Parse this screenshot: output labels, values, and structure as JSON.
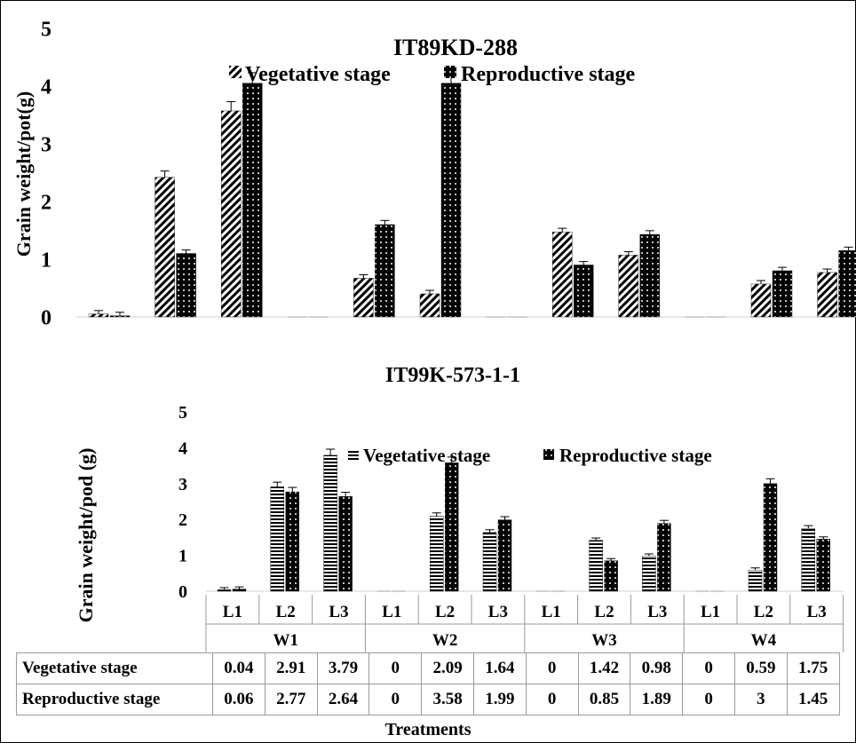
{
  "chart_data": [
    {
      "type": "bar",
      "title": "IT89KD-288",
      "ylabel": "Grain weight/pot(g)",
      "ylim": [
        0,
        5
      ],
      "yticks": [
        0,
        1,
        2,
        3,
        4,
        5
      ],
      "legend_position": "top-center",
      "series": [
        {
          "name": "Vegetative stage",
          "pattern": "diagonal-hatch",
          "values": [
            0.05,
            2.42,
            3.57,
            0,
            0.67,
            0.4,
            0,
            1.47,
            1.07,
            0,
            0.57,
            0.77
          ]
        },
        {
          "name": "Reproductive stage",
          "pattern": "black-dots",
          "values": [
            0.02,
            1.1,
            4.05,
            0,
            1.6,
            4.05,
            0,
            0.9,
            1.43,
            0,
            0.8,
            1.15
          ]
        }
      ]
    },
    {
      "type": "bar",
      "title": "IT99K-573-1-1",
      "ylabel": "Grain weight/pod (g)",
      "xlabel": "Treatments",
      "ylim": [
        0,
        5
      ],
      "yticks": [
        0,
        1,
        2,
        3,
        4,
        5
      ],
      "legend_position": "top-right",
      "levels": [
        "L1",
        "L2",
        "L3",
        "L1",
        "L2",
        "L3",
        "L1",
        "L2",
        "L3",
        "L1",
        "L2",
        "L3"
      ],
      "groups": [
        "W1",
        "W2",
        "W3",
        "W4"
      ],
      "series": [
        {
          "name": "Vegetative stage",
          "pattern": "horizontal-lines",
          "values": [
            0.04,
            2.91,
            3.79,
            0,
            2.09,
            1.64,
            0,
            1.42,
            0.98,
            0,
            0.59,
            1.75
          ]
        },
        {
          "name": "Reproductive stage",
          "pattern": "black-dots",
          "values": [
            0.06,
            2.77,
            2.64,
            0,
            3.58,
            1.99,
            0,
            0.85,
            1.89,
            0,
            3,
            1.45
          ]
        }
      ]
    }
  ],
  "table": {
    "rows": [
      {
        "label": "Vegetative stage",
        "values": [
          "0.04",
          "2.91",
          "3.79",
          "0",
          "2.09",
          "1.64",
          "0",
          "1.42",
          "0.98",
          "0",
          "0.59",
          "1.75"
        ]
      },
      {
        "label": "Reproductive stage",
        "values": [
          "0.06",
          "2.77",
          "2.64",
          "0",
          "3.58",
          "1.99",
          "0",
          "0.85",
          "1.89",
          "0",
          "3",
          "1.45"
        ]
      }
    ]
  }
}
